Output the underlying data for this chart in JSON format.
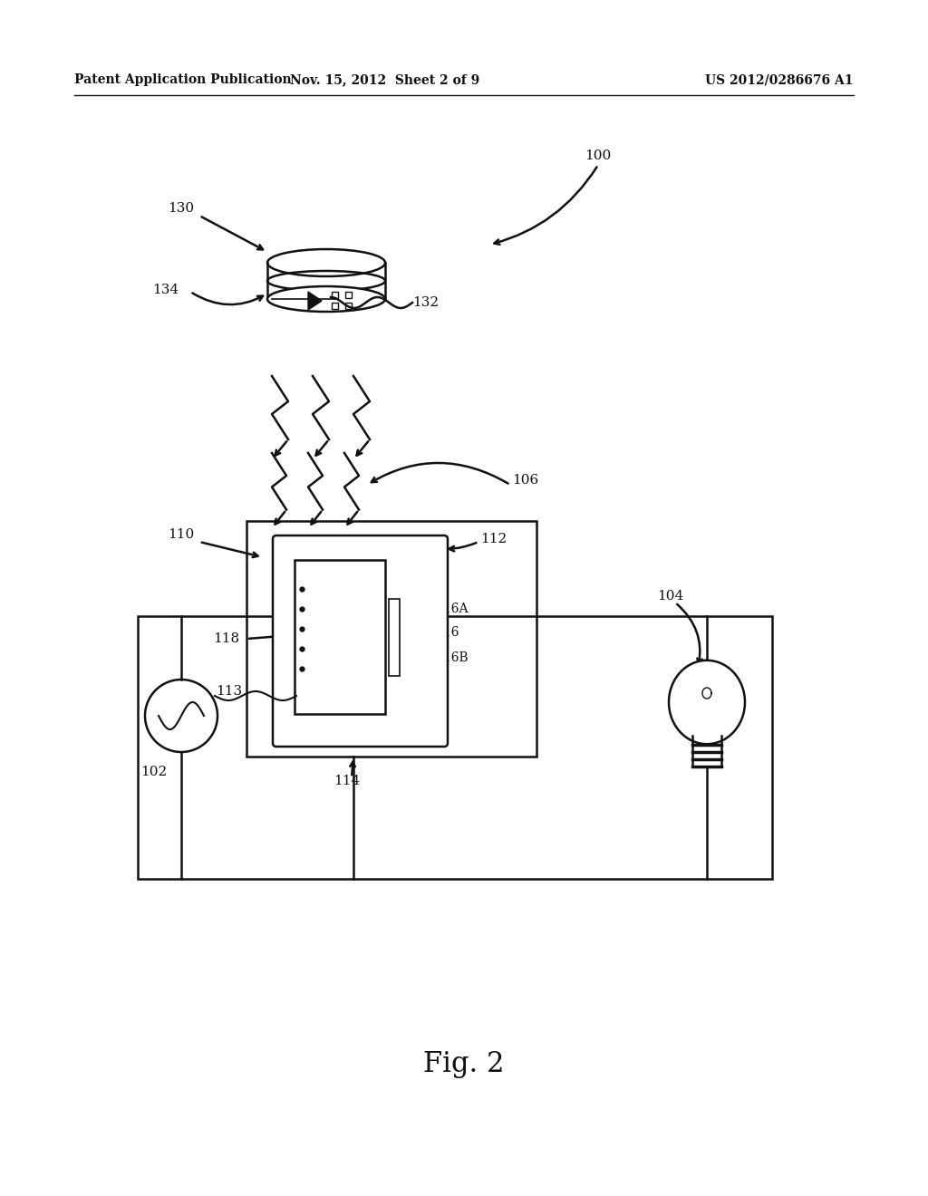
{
  "header_left": "Patent Application Publication",
  "header_mid": "Nov. 15, 2012  Sheet 2 of 9",
  "header_right": "US 2012/0286676 A1",
  "fig_label": "Fig. 2",
  "bg_color": "#ffffff",
  "line_color": "#111111"
}
